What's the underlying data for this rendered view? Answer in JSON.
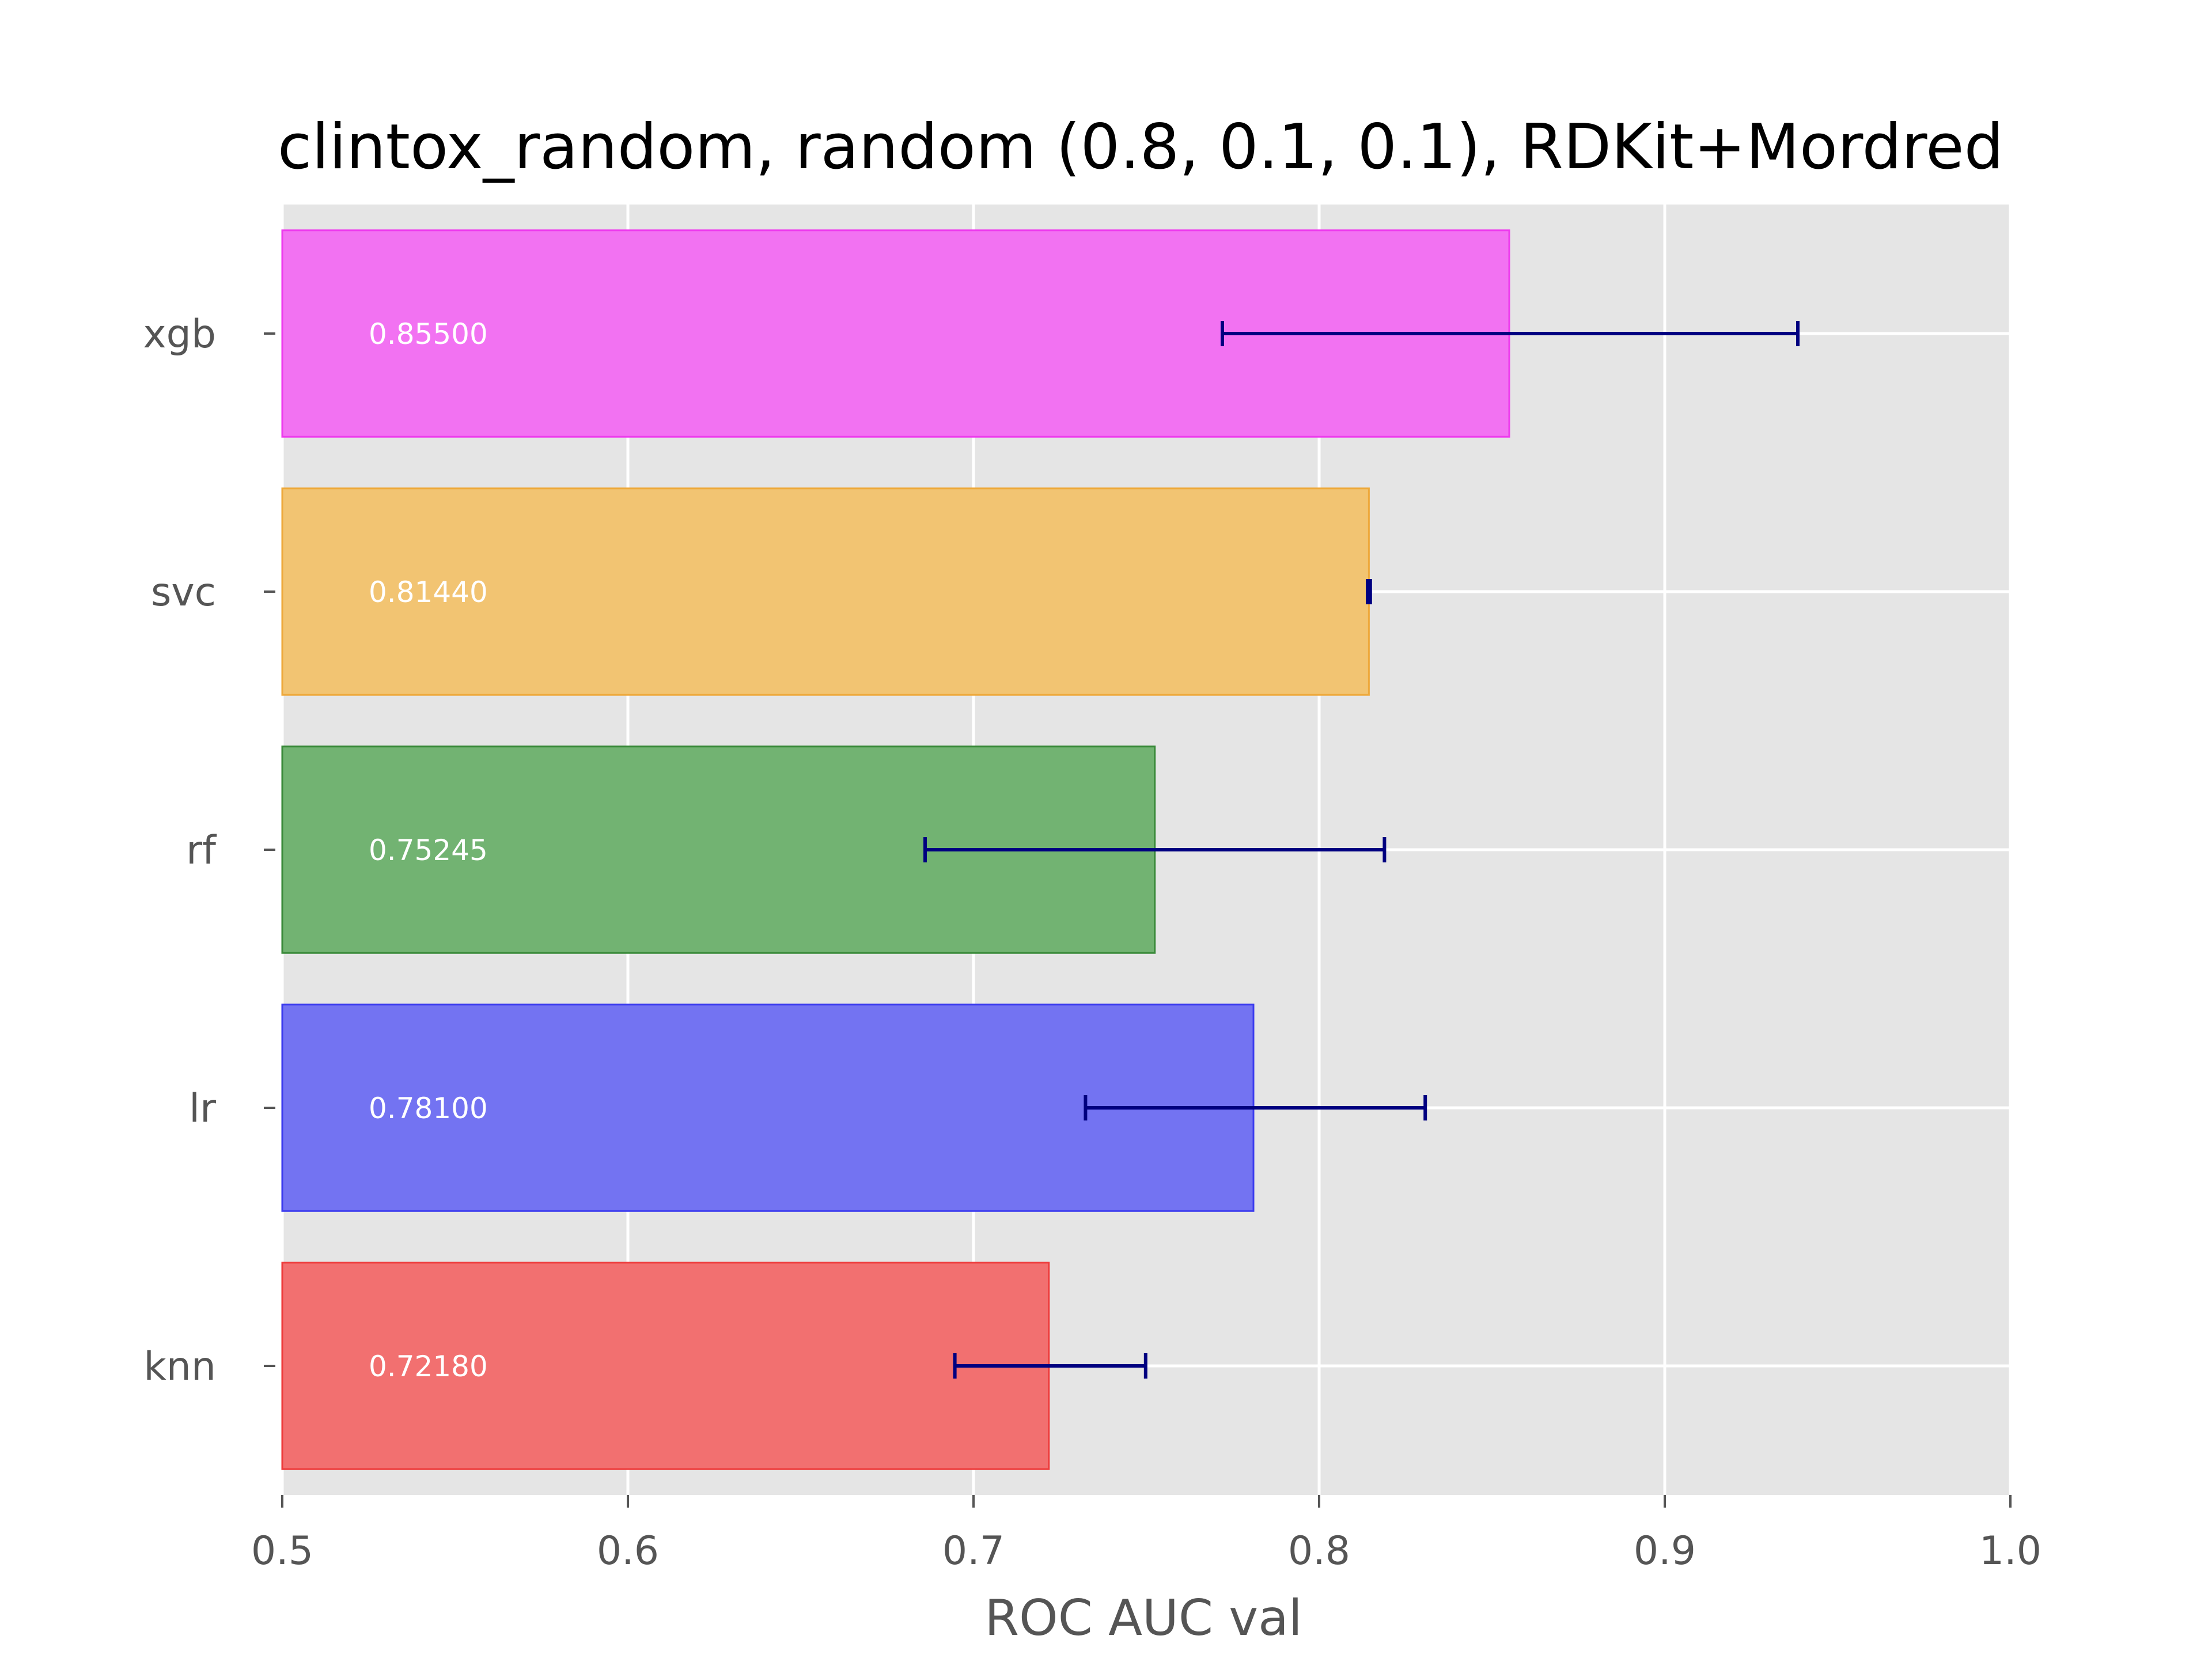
{
  "chart_data": {
    "type": "bar",
    "orientation": "horizontal",
    "title": "clintox_random, random (0.8, 0.1, 0.1), RDKit+Mordred",
    "xlabel": "ROC AUC val",
    "ylabel": "",
    "xlim": [
      0.5,
      1.0
    ],
    "xticks": [
      0.5,
      0.6,
      0.7,
      0.8,
      0.9,
      1.0
    ],
    "xtick_labels": [
      "0.5",
      "0.6",
      "0.7",
      "0.8",
      "0.9",
      "1.0"
    ],
    "grid": true,
    "categories": [
      "knn",
      "lr",
      "rf",
      "svc",
      "xgb"
    ],
    "values": [
      0.7218,
      0.781,
      0.75245,
      0.8144,
      0.855
    ],
    "value_labels": [
      "0.72180",
      "0.78100",
      "0.75245",
      "0.81440",
      "0.85500"
    ],
    "error_low": [
      0.6946,
      0.7324,
      0.686,
      0.814,
      0.772
    ],
    "error_high": [
      0.7498,
      0.8307,
      0.8189,
      0.8148,
      0.9385
    ],
    "colors": [
      "#f27070",
      "#7373f2",
      "#72b372",
      "#f2c472",
      "#f272f2"
    ],
    "edge_colors": [
      "#ee3b3b",
      "#3b3bee",
      "#3a8a3a",
      "#eea93b",
      "#ee3bee"
    ],
    "error_color": "#000080",
    "plot_background": "#e5e5e5",
    "grid_color": "#ffffff"
  }
}
